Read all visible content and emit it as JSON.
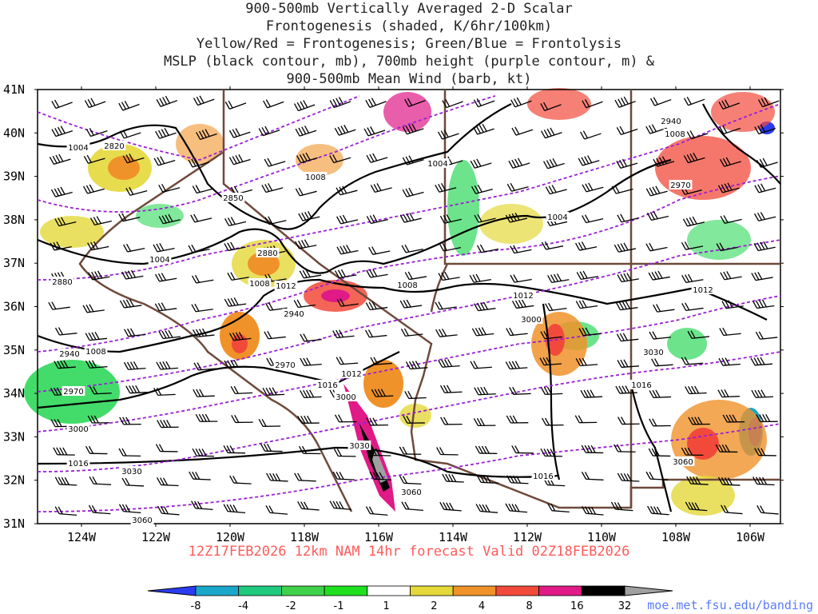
{
  "titles": [
    "900-500mb Vertically Averaged 2-D Scalar",
    "Frontogenesis (shaded, K/6hr/100km)",
    "Yellow/Red = Frontogenesis;  Green/Blue = Frontolysis",
    "MSLP (black contour, mb), 700mb height (purple contour, m) &",
    "900-500mb Mean Wind (barb, kt)"
  ],
  "lat_labels": [
    "41N",
    "40N",
    "39N",
    "38N",
    "37N",
    "36N",
    "35N",
    "34N",
    "33N",
    "32N",
    "31N"
  ],
  "lon_labels": [
    "124W",
    "122W",
    "120W",
    "118W",
    "116W",
    "114W",
    "112W",
    "110W",
    "108W",
    "106W"
  ],
  "valid_time": "12Z17FEB2026 12km NAM 14hr forecast Valid 02Z18FEB2026",
  "credit": "moe.met.fsu.edu/banding",
  "colorbar": {
    "ticks": [
      "-8",
      "-4",
      "-2",
      "-1",
      "1",
      "2",
      "4",
      "8",
      "16",
      "32"
    ],
    "colors": [
      "#2a3cf0",
      "#1aa7c9",
      "#1fc97e",
      "#3fd14a",
      "#1ee01e",
      "#ffffff",
      "#e4d83a",
      "#f0922a",
      "#f24a3a",
      "#e01a86",
      "#000000",
      "#a0a0a0"
    ]
  },
  "mslp_labels": [
    "1004",
    "1004",
    "1008",
    "1004",
    "1008",
    "1012",
    "1008",
    "1004",
    "1008",
    "1012",
    "1016",
    "1012",
    "1016",
    "1008",
    "1012",
    "1016",
    "1016"
  ],
  "height_labels": [
    "2820",
    "2850",
    "2880",
    "2880",
    "2940",
    "2970",
    "2970",
    "2940",
    "3000",
    "3000",
    "3030",
    "3000",
    "3060",
    "3030",
    "3060",
    "3060",
    "2940",
    "2970",
    "3030"
  ],
  "colors": {
    "mslp": "#000000",
    "height": "#9b1fd6",
    "borders": "#6e4a3a",
    "title": "#222222",
    "valid": "#ff5a5a",
    "credit": "#5a7bff"
  }
}
